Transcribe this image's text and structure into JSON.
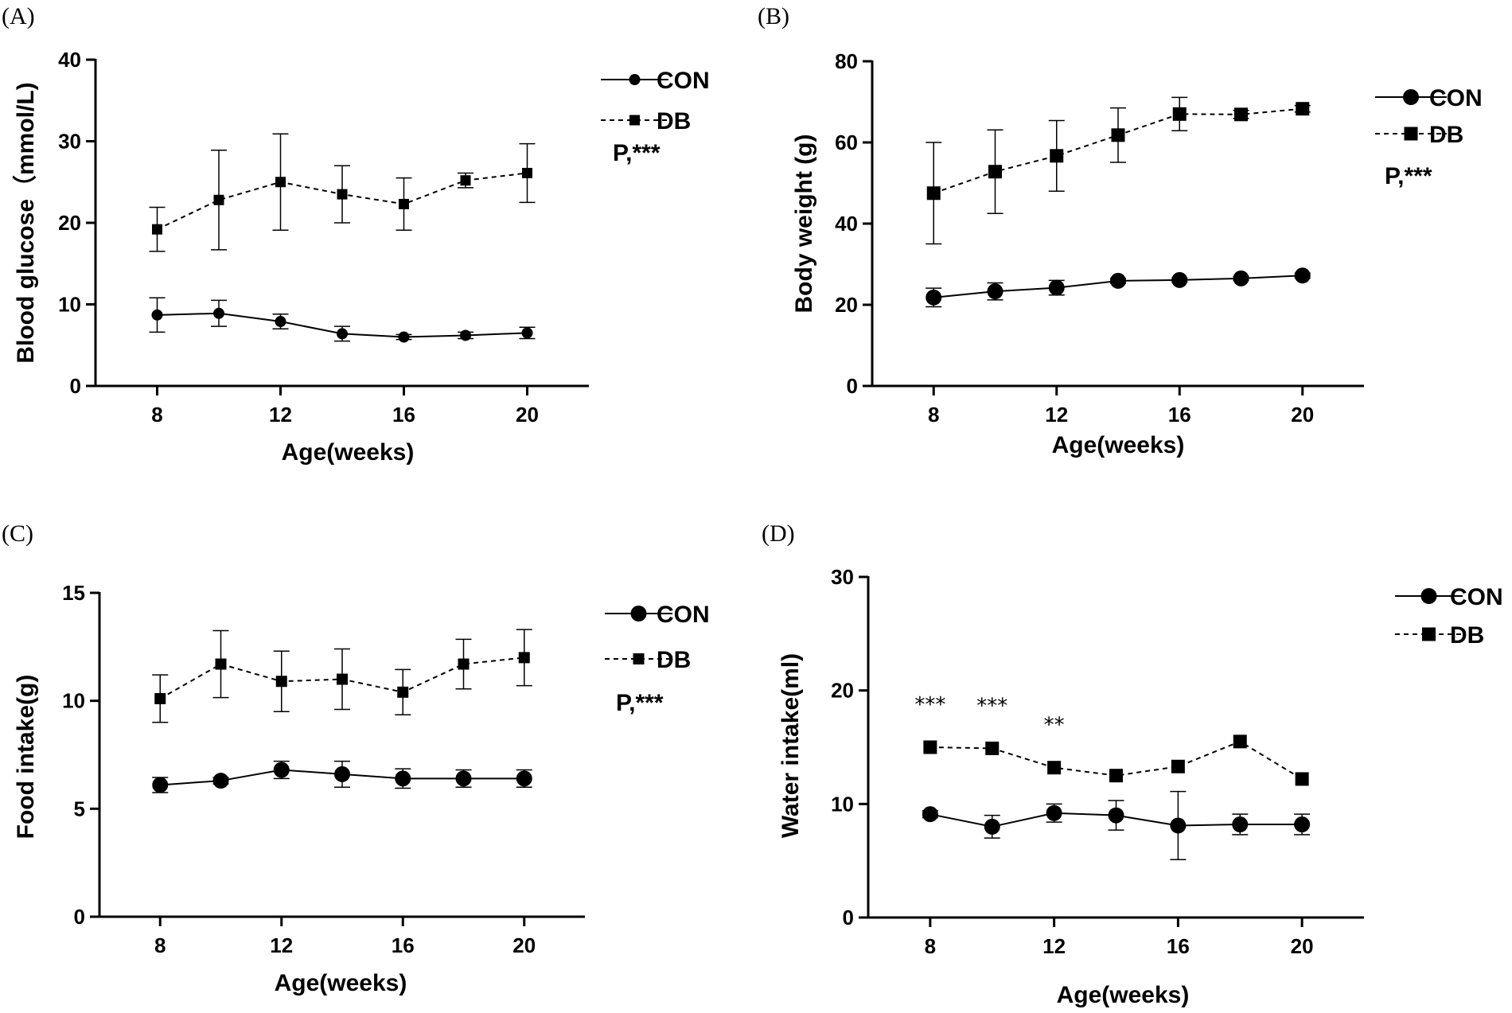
{
  "chart_data": [
    {
      "type": "line",
      "panel_label": "(A)",
      "xlabel": "Age(weeks)",
      "ylabel": "Blood glucose（mmol/L)",
      "xlim": [
        6,
        22
      ],
      "ylim": [
        0,
        40
      ],
      "x_ticks": [
        8,
        12,
        16,
        20
      ],
      "y_ticks": [
        0,
        10,
        20,
        30,
        40
      ],
      "x": [
        8,
        10,
        12,
        14,
        16,
        18,
        20
      ],
      "series": [
        {
          "name": "CON",
          "marker": "circle",
          "dashed": false,
          "values": [
            8.7,
            8.9,
            7.9,
            6.4,
            6.0,
            6.2,
            6.5
          ],
          "errors": [
            2.1,
            1.6,
            0.9,
            0.9,
            0.3,
            0.4,
            0.7
          ]
        },
        {
          "name": "DB",
          "marker": "square",
          "dashed": true,
          "values": [
            19.2,
            22.8,
            25.0,
            23.5,
            22.3,
            25.2,
            26.1
          ],
          "errors": [
            2.7,
            6.1,
            5.9,
            3.5,
            3.2,
            0.9,
            3.6
          ]
        }
      ],
      "significance": "P,***",
      "annotations": []
    },
    {
      "type": "line",
      "panel_label": "(B)",
      "xlabel": "Age(weeks)",
      "ylabel": "Body weight (g)",
      "xlim": [
        6,
        22
      ],
      "ylim": [
        0,
        80
      ],
      "x_ticks": [
        8,
        12,
        16,
        20
      ],
      "y_ticks": [
        0,
        20,
        40,
        60,
        80
      ],
      "x": [
        8,
        10,
        12,
        14,
        16,
        18,
        20
      ],
      "series": [
        {
          "name": "CON",
          "marker": "circle",
          "dashed": false,
          "values": [
            21.8,
            23.3,
            24.2,
            25.9,
            26.1,
            26.5,
            27.2
          ],
          "errors": [
            2.3,
            2.1,
            1.8,
            0.6,
            0.5,
            0.5,
            0.6
          ]
        },
        {
          "name": "DB",
          "marker": "square",
          "dashed": true,
          "values": [
            47.5,
            52.8,
            56.7,
            61.8,
            67.0,
            66.9,
            68.3
          ],
          "errors": [
            12.5,
            10.3,
            8.7,
            6.7,
            4.1,
            1.0,
            0.8
          ]
        }
      ],
      "significance": "P,***",
      "annotations": []
    },
    {
      "type": "line",
      "panel_label": "(C)",
      "xlabel": "Age(weeks)",
      "ylabel": "Food intake(g)",
      "xlim": [
        6,
        22
      ],
      "ylim": [
        0,
        15
      ],
      "x_ticks": [
        8,
        12,
        16,
        20
      ],
      "y_ticks": [
        0,
        5,
        10,
        15
      ],
      "x": [
        8,
        10,
        12,
        14,
        16,
        18,
        20
      ],
      "series": [
        {
          "name": "CON",
          "marker": "circle",
          "dashed": false,
          "values": [
            6.1,
            6.3,
            6.8,
            6.6,
            6.4,
            6.4,
            6.4
          ],
          "errors": [
            0.35,
            0.15,
            0.4,
            0.6,
            0.45,
            0.4,
            0.4
          ]
        },
        {
          "name": "DB",
          "marker": "square",
          "dashed": true,
          "values": [
            10.1,
            11.7,
            10.9,
            11.0,
            10.4,
            11.7,
            12.0
          ],
          "errors": [
            1.1,
            1.55,
            1.4,
            1.4,
            1.05,
            1.15,
            1.3
          ]
        }
      ],
      "significance": "P,***",
      "annotations": []
    },
    {
      "type": "line",
      "panel_label": "(D)",
      "xlabel": "Age(weeks)",
      "ylabel": "Water intake(ml)",
      "xlim": [
        6,
        22
      ],
      "ylim": [
        0,
        30
      ],
      "x_ticks": [
        8,
        12,
        16,
        20
      ],
      "y_ticks": [
        0,
        10,
        20,
        30
      ],
      "x": [
        8,
        10,
        12,
        14,
        16,
        18,
        20
      ],
      "series": [
        {
          "name": "CON",
          "marker": "circle",
          "dashed": false,
          "values": [
            9.1,
            8.0,
            9.2,
            9.0,
            8.1,
            8.2,
            8.2
          ],
          "errors": [
            0.3,
            1.0,
            0.8,
            1.3,
            3.0,
            0.9,
            0.9
          ]
        },
        {
          "name": "DB",
          "marker": "square",
          "dashed": true,
          "values": [
            15.0,
            14.9,
            13.2,
            12.5,
            13.3,
            15.5,
            12.2
          ],
          "errors": [
            0,
            0,
            0,
            0,
            0,
            0,
            0
          ]
        }
      ],
      "significance": "",
      "annotations": [
        {
          "x": 8,
          "text": "***"
        },
        {
          "x": 10,
          "text": "***"
        },
        {
          "x": 12,
          "text": "**"
        }
      ]
    }
  ]
}
